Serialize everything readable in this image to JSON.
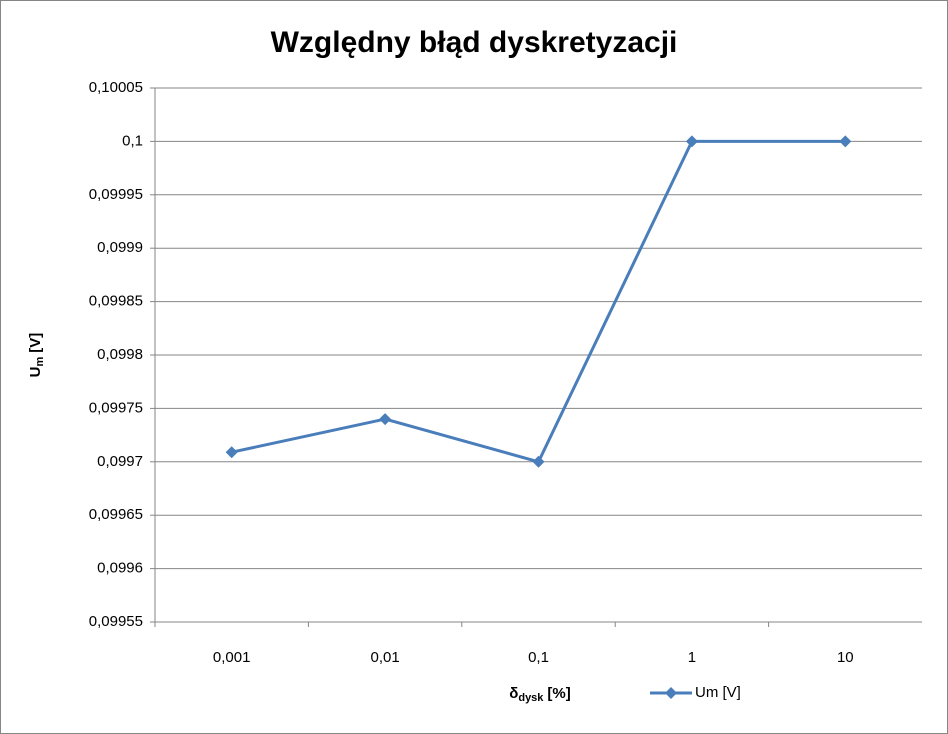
{
  "chart_data": {
    "type": "line",
    "title": "Względny błąd dyskretyzacji",
    "x_label": {
      "symbol": "δ",
      "subscript": "dysk",
      "unit": "[%]"
    },
    "y_label": {
      "symbol": "U",
      "subscript": "m",
      "unit": "[V]"
    },
    "categories": [
      "0,001",
      "0,01",
      "0,1",
      "1",
      "10"
    ],
    "series": [
      {
        "name": "Um [V]",
        "color": "#4a7ebb",
        "values": [
          0.099709,
          0.09974,
          0.0997,
          0.1,
          0.1
        ]
      }
    ],
    "ylim": [
      0.09955,
      0.10005
    ],
    "yticks": [
      {
        "value": 0.09955,
        "label": "0,09955"
      },
      {
        "value": 0.0996,
        "label": "0,0996"
      },
      {
        "value": 0.09965,
        "label": "0,09965"
      },
      {
        "value": 0.0997,
        "label": "0,0997"
      },
      {
        "value": 0.09975,
        "label": "0,09975"
      },
      {
        "value": 0.0998,
        "label": "0,0998"
      },
      {
        "value": 0.09985,
        "label": "0,09985"
      },
      {
        "value": 0.0999,
        "label": "0,0999"
      },
      {
        "value": 0.09995,
        "label": "0,09995"
      },
      {
        "value": 0.1,
        "label": "0,1"
      },
      {
        "value": 0.10005,
        "label": "0,10005"
      }
    ],
    "grid": true,
    "legend": "bottom"
  }
}
